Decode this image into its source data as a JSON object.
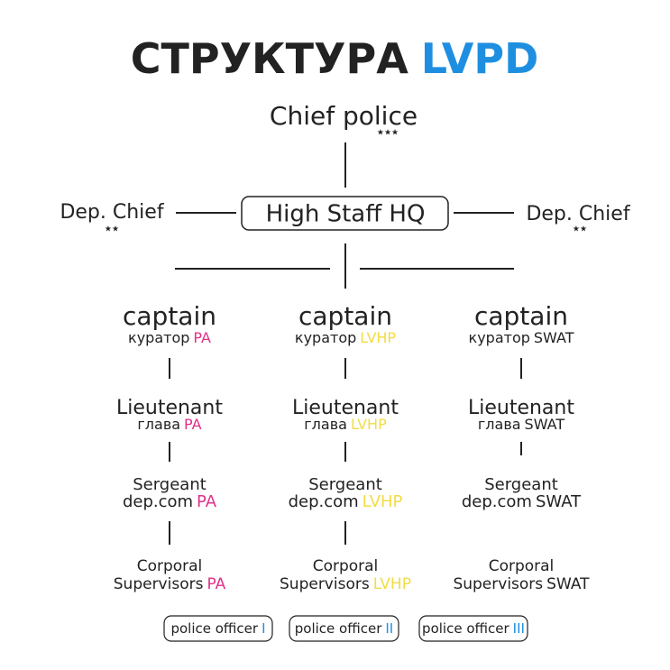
{
  "title": {
    "main": "СТРУКТУРА",
    "accent": "LVPD"
  },
  "chief": {
    "label": "Chief police",
    "stars": "★★★"
  },
  "hq": "High Staff HQ",
  "deputies": [
    {
      "label": "Dep. Chief",
      "stars": "★★"
    },
    {
      "label": "Dep. Chief",
      "stars": "★★"
    }
  ],
  "columns": [
    {
      "division": "PA",
      "color": "#e2308a",
      "ranks": [
        {
          "title": "captain",
          "role": "куратор"
        },
        {
          "title": "Lieutenant",
          "role": "глава"
        },
        {
          "title": "Sergeant",
          "role": "dep.com"
        },
        {
          "title": "Corporal",
          "role": "Supervisors"
        }
      ],
      "officer": {
        "label": "police officer",
        "numeral": "I"
      }
    },
    {
      "division": "LVHP",
      "color": "#f2dc45",
      "ranks": [
        {
          "title": "captain",
          "role": "куратор"
        },
        {
          "title": "Lieutenant",
          "role": "глава"
        },
        {
          "title": "Sergeant",
          "role": "dep.com"
        },
        {
          "title": "Corporal",
          "role": "Supervisors"
        }
      ],
      "officer": {
        "label": "police officer",
        "numeral": "II"
      }
    },
    {
      "division": "SWAT",
      "color": "#222222",
      "ranks": [
        {
          "title": "captain",
          "role": "куратор"
        },
        {
          "title": "Lieutenant",
          "role": "глава"
        },
        {
          "title": "Sergeant",
          "role": "dep.com"
        },
        {
          "title": "Corporal",
          "role": "Supervisors"
        }
      ],
      "officer": {
        "label": "police officer",
        "numeral": "III"
      }
    }
  ]
}
